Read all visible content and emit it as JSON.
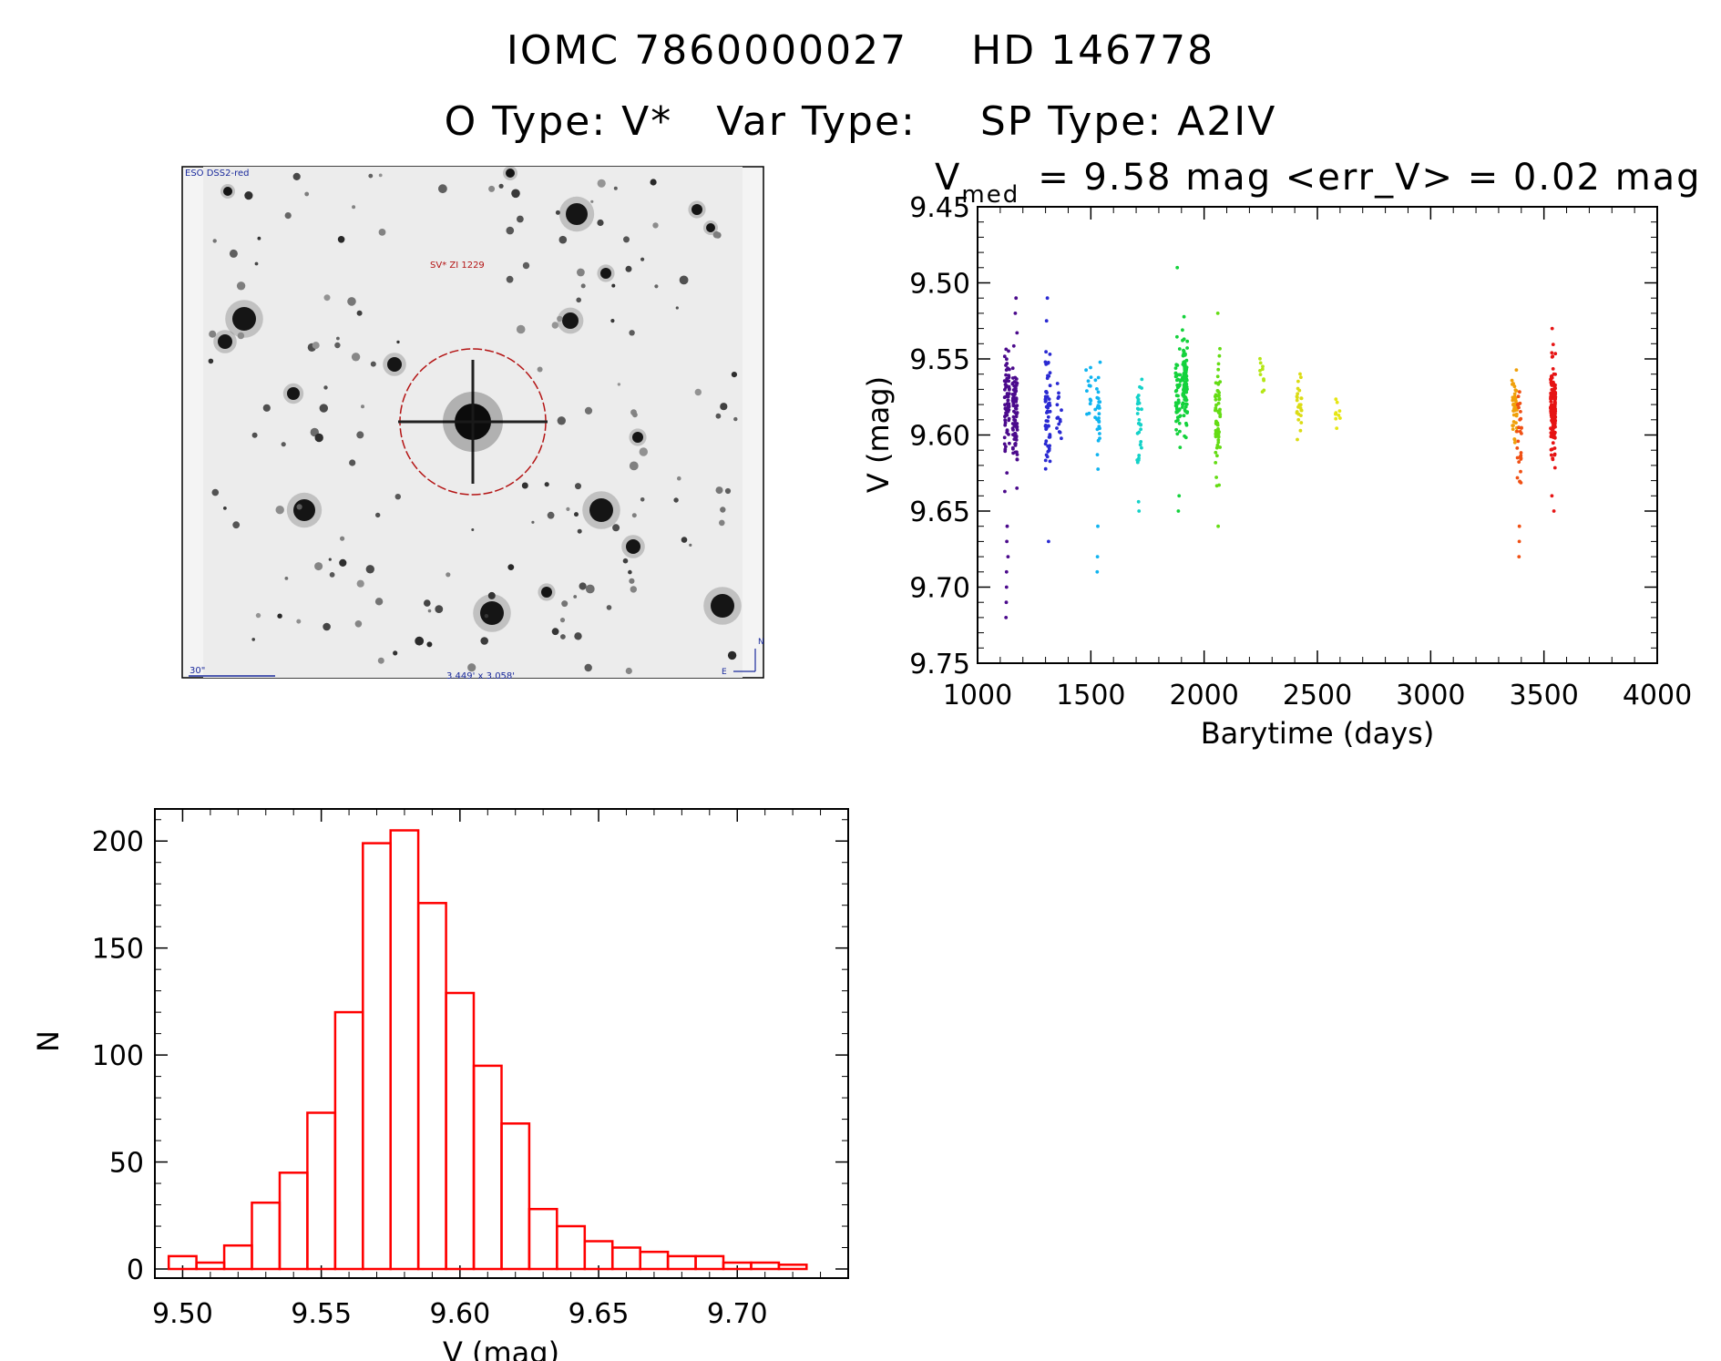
{
  "header": {
    "iomc_id": "IOMC 7860000027",
    "hd_id": "HD 146778",
    "o_type": "O Type: V*",
    "var_type": "Var Type:",
    "sp_type": "SP Type: A2IV"
  },
  "finder_chart": {
    "survey_label": "ESO DSS2-red",
    "object_label": "SV* ZI 1229",
    "scale_label": "30\"",
    "fov_label": "3.449' x 3.058'",
    "north_label": "N",
    "east_label": "E"
  },
  "chart_data": [
    {
      "type": "scatter",
      "title_prefix": "V",
      "title_subscript": "med",
      "title_rest": "= 9.58 mag <err_V> = 0.02 mag",
      "xlabel": "Barytime (days)",
      "ylabel": "V (mag)",
      "xlim": [
        1000,
        4000
      ],
      "ylim": [
        9.75,
        9.45
      ],
      "xticks": [
        "1000",
        "1500",
        "2000",
        "2500",
        "3000",
        "3500",
        "4000"
      ],
      "yticks": [
        "9.45",
        "9.50",
        "9.55",
        "9.60",
        "9.65",
        "9.70",
        "9.75"
      ],
      "clusters": [
        {
          "x": 1130,
          "mean": 9.58,
          "spread": 0.025,
          "color": "#4b0a8c",
          "n": 70,
          "extra": [
            9.66,
            9.67,
            9.68,
            9.69,
            9.7,
            9.71,
            9.72
          ]
        },
        {
          "x": 1165,
          "mean": 9.585,
          "spread": 0.03,
          "color": "#4b0a8c",
          "n": 80,
          "extra": [
            9.52,
            9.51
          ]
        },
        {
          "x": 1310,
          "mean": 9.585,
          "spread": 0.03,
          "color": "#2a2ad2",
          "n": 60,
          "extra": [
            9.67,
            9.51
          ]
        },
        {
          "x": 1360,
          "mean": 9.59,
          "spread": 0.02,
          "color": "#2a2ad2",
          "n": 15,
          "extra": []
        },
        {
          "x": 1490,
          "mean": 9.57,
          "spread": 0.015,
          "color": "#10b4f0",
          "n": 12,
          "extra": []
        },
        {
          "x": 1530,
          "mean": 9.59,
          "spread": 0.03,
          "color": "#10b4f0",
          "n": 30,
          "extra": [
            9.66,
            9.68,
            9.69
          ]
        },
        {
          "x": 1715,
          "mean": 9.59,
          "spread": 0.03,
          "color": "#14d2c8",
          "n": 30,
          "extra": [
            9.65
          ]
        },
        {
          "x": 1885,
          "mean": 9.57,
          "spread": 0.03,
          "color": "#14d23c",
          "n": 50,
          "extra": [
            9.64,
            9.65,
            9.49
          ]
        },
        {
          "x": 1915,
          "mean": 9.565,
          "spread": 0.025,
          "color": "#14d23c",
          "n": 90,
          "extra": []
        },
        {
          "x": 2060,
          "mean": 9.585,
          "spread": 0.03,
          "color": "#64dc14",
          "n": 60,
          "extra": [
            9.66,
            9.52
          ]
        },
        {
          "x": 2255,
          "mean": 9.56,
          "spread": 0.015,
          "color": "#b4e614",
          "n": 10,
          "extra": []
        },
        {
          "x": 2420,
          "mean": 9.58,
          "spread": 0.015,
          "color": "#dcdc14",
          "n": 25,
          "extra": []
        },
        {
          "x": 2590,
          "mean": 9.585,
          "spread": 0.012,
          "color": "#e6e614",
          "n": 10,
          "extra": []
        },
        {
          "x": 3370,
          "mean": 9.58,
          "spread": 0.02,
          "color": "#f0a00a",
          "n": 50,
          "extra": []
        },
        {
          "x": 3390,
          "mean": 9.6,
          "spread": 0.03,
          "color": "#f05014",
          "n": 30,
          "extra": [
            9.66,
            9.67,
            9.68
          ]
        },
        {
          "x": 3540,
          "mean": 9.585,
          "spread": 0.022,
          "color": "#e61414",
          "n": 160,
          "extra": [
            9.53,
            9.64,
            9.65
          ]
        }
      ]
    },
    {
      "type": "bar",
      "xlabel": "V (mag)",
      "ylabel": "N",
      "xlim": [
        9.49,
        9.74
      ],
      "ylim": [
        0,
        215
      ],
      "xticks": [
        "9.50",
        "9.55",
        "9.60",
        "9.65",
        "9.70"
      ],
      "yticks": [
        "0",
        "50",
        "100",
        "150",
        "200"
      ],
      "bin_width": 0.01,
      "bin_start": 9.495,
      "values": [
        6,
        3,
        11,
        31,
        45,
        73,
        120,
        199,
        205,
        171,
        129,
        95,
        68,
        28,
        20,
        13,
        10,
        8,
        6,
        6,
        3,
        3,
        2
      ],
      "color": "#ff0000"
    }
  ]
}
